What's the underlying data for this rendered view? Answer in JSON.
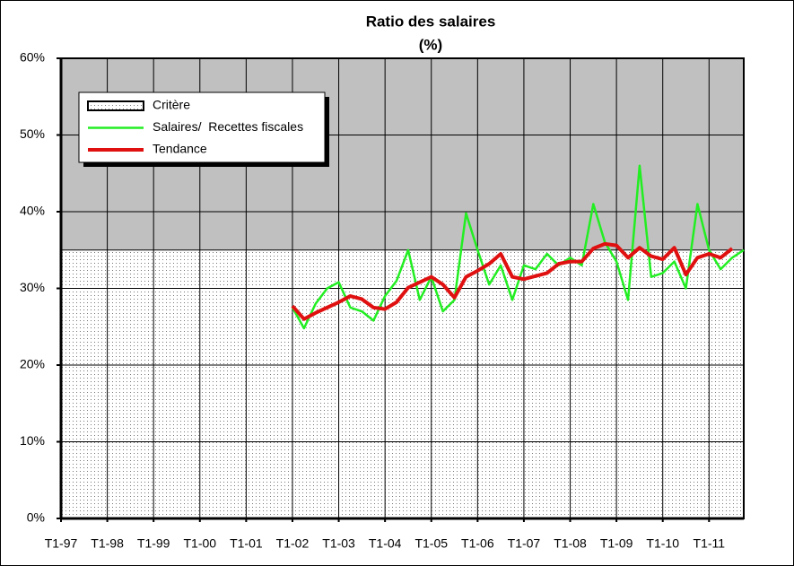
{
  "chart_data": {
    "type": "line",
    "title": "Ratio des salaires",
    "subtitle": "(%)",
    "categories": [
      "T1-97",
      null,
      null,
      null,
      "T1-98",
      null,
      null,
      null,
      "T1-99",
      null,
      null,
      null,
      "T1-00",
      null,
      null,
      null,
      "T1-01",
      null,
      null,
      null,
      "T1-02",
      null,
      null,
      null,
      "T1-03",
      null,
      null,
      null,
      "T1-04",
      null,
      null,
      null,
      "T1-05",
      null,
      null,
      null,
      "T1-06",
      null,
      null,
      null,
      "T1-07",
      null,
      null,
      null,
      "T1-08",
      null,
      null,
      null,
      "T1-09",
      null,
      null,
      null,
      "T1-10",
      null,
      null,
      null,
      "T1-11",
      null,
      null,
      null
    ],
    "series": [
      {
        "name": "Critère",
        "style": "area",
        "color": "#ffffff",
        "values": [
          35,
          35,
          35,
          35,
          35,
          35,
          35,
          35,
          35,
          35,
          35,
          35,
          35,
          35,
          35,
          35,
          35,
          35,
          35,
          35,
          35,
          35,
          35,
          35,
          35,
          35,
          35,
          35,
          35,
          35,
          35,
          35,
          35,
          35,
          35,
          35,
          35,
          35,
          35,
          35,
          35,
          35,
          35,
          35,
          35,
          35,
          35,
          35,
          35,
          35,
          35,
          35,
          35,
          35,
          35,
          35,
          35,
          35,
          35,
          35
        ]
      },
      {
        "name": "Salaires/  Recettes fiscales",
        "style": "line",
        "color": "#22ee22",
        "values": [
          null,
          null,
          null,
          null,
          null,
          null,
          null,
          null,
          null,
          null,
          null,
          null,
          null,
          null,
          null,
          null,
          null,
          null,
          null,
          null,
          27.5,
          24.8,
          28,
          30,
          30.8,
          27.5,
          27,
          25.8,
          29,
          31,
          35,
          28.5,
          31.5,
          27,
          28.5,
          39.8,
          35,
          30.5,
          33,
          28.5,
          33,
          32.5,
          34.5,
          33,
          34,
          33,
          41,
          36,
          33.5,
          28.5,
          46,
          31.5,
          32,
          33.5,
          30,
          41,
          35,
          32.5,
          34,
          35
        ]
      },
      {
        "name": "Tendance",
        "style": "line",
        "color": "#e01010",
        "values": [
          null,
          null,
          null,
          null,
          null,
          null,
          null,
          null,
          null,
          null,
          null,
          null,
          null,
          null,
          null,
          null,
          null,
          null,
          null,
          null,
          27.7,
          26,
          26.8,
          27.5,
          28.2,
          29,
          28.6,
          27.5,
          27.3,
          28.2,
          30.1,
          30.8,
          31.5,
          30.5,
          28.8,
          31.5,
          32.3,
          33.2,
          34.5,
          31.5,
          31.2,
          31.6,
          32,
          33.2,
          33.5,
          33.5,
          35.2,
          35.8,
          35.6,
          34,
          35.3,
          34.2,
          33.8,
          35.3,
          31.8,
          34,
          34.5,
          34,
          35.2,
          null
        ]
      }
    ],
    "ylim": [
      0,
      60
    ],
    "yticks": [
      {
        "value": 0,
        "label": "0%"
      },
      {
        "value": 10,
        "label": "10%"
      },
      {
        "value": 20,
        "label": "20%"
      },
      {
        "value": 30,
        "label": "30%"
      },
      {
        "value": 40,
        "label": "40%"
      },
      {
        "value": 50,
        "label": "50%"
      },
      {
        "value": 60,
        "label": "60%"
      }
    ],
    "grid": true,
    "plot_background": "#c0c0c0"
  }
}
